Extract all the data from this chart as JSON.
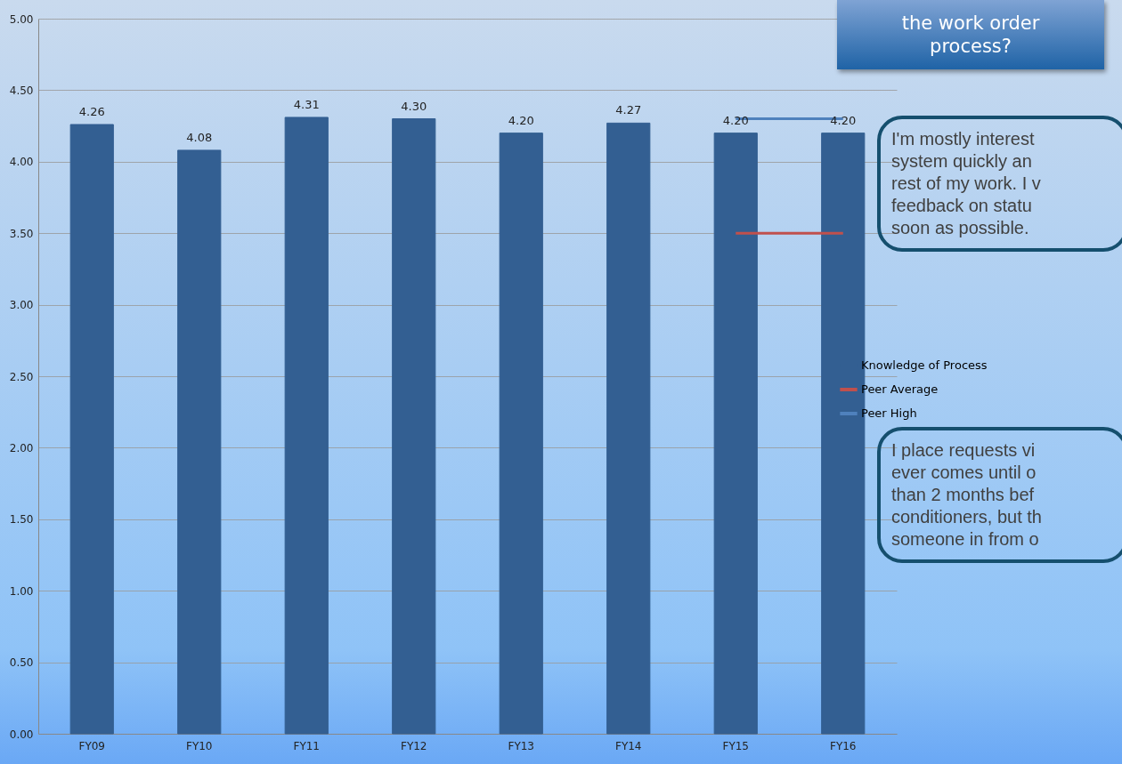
{
  "chart_data": {
    "type": "bar",
    "title": "the work order\nprocess?",
    "categories": [
      "FY09",
      "FY10",
      "FY11",
      "FY12",
      "FY13",
      "FY14",
      "FY15",
      "FY16"
    ],
    "series": [
      {
        "name": "Knowledge of Process",
        "color": "#335f92",
        "values": [
          4.26,
          4.08,
          4.31,
          4.3,
          4.2,
          4.27,
          4.2,
          4.2
        ],
        "value_labels": [
          "4.26",
          "4.08",
          "4.31",
          "4.30",
          "4.20",
          "4.27",
          "4.20",
          "4.20"
        ]
      },
      {
        "name": "Peer Average",
        "type": "line",
        "color": "#c0504d",
        "values": [
          null,
          null,
          null,
          null,
          null,
          null,
          3.5,
          3.5
        ]
      },
      {
        "name": "Peer High",
        "type": "line",
        "color": "#4f81bd",
        "values": [
          null,
          null,
          null,
          null,
          null,
          null,
          4.3,
          4.3
        ]
      }
    ],
    "ylim": [
      0,
      5
    ],
    "yticks": [
      {
        "value": 0,
        "label": "0.00"
      },
      {
        "value": 0.5,
        "label": "0.50"
      },
      {
        "value": 1,
        "label": "1.00"
      },
      {
        "value": 1.5,
        "label": "1.50"
      },
      {
        "value": 2,
        "label": "2.00"
      },
      {
        "value": 2.5,
        "label": "2.50"
      },
      {
        "value": 3,
        "label": "3.00"
      },
      {
        "value": 3.5,
        "label": "3.50"
      },
      {
        "value": 4,
        "label": "4.00"
      },
      {
        "value": 4.5,
        "label": "4.50"
      },
      {
        "value": 5,
        "label": "5.00"
      }
    ],
    "grid": "y",
    "legend": "right",
    "annotations": [
      "I'm mostly interest\nsystem quickly an\nrest of my work. I v\nfeedback on statu\nsoon as possible.",
      "I place requests vi\never comes until o\nthan 2 months bef\nconditioners, but th\nsomeone in from o"
    ]
  }
}
